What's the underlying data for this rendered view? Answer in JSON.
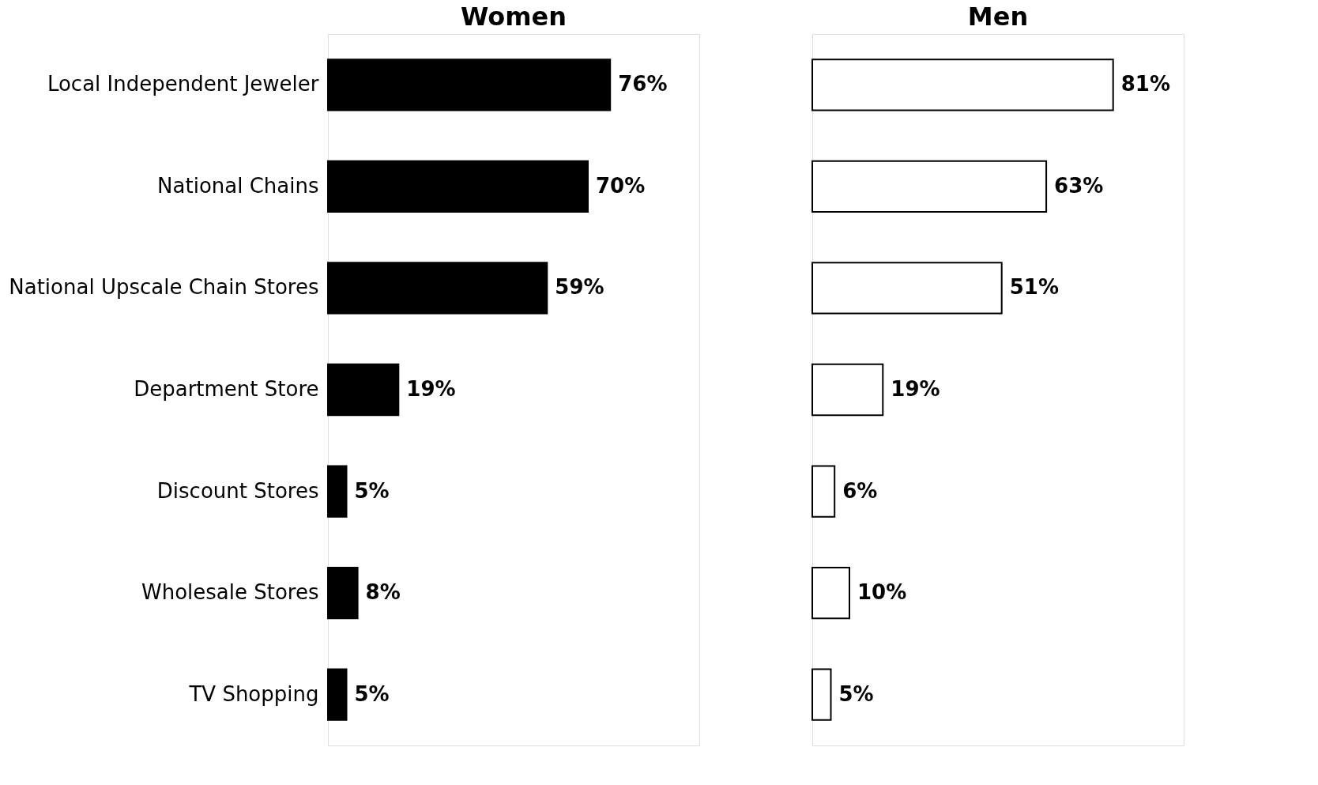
{
  "chart_data": [
    {
      "type": "bar",
      "orientation": "horizontal",
      "title": "Women",
      "categories": [
        "Local Independent Jeweler",
        "National Chains",
        "National Upscale Chain Stores",
        "Department Store",
        "Discount Stores",
        "Wholesale Stores",
        "TV Shopping"
      ],
      "series": [
        {
          "color": "#000000",
          "values": [
            76,
            70,
            59,
            19,
            5,
            8,
            5
          ],
          "value_labels": [
            "76%",
            "70%",
            "59%",
            "19%",
            "5%",
            "8%",
            "5%"
          ]
        }
      ],
      "xlim": [
        0,
        100
      ],
      "tick_labels": "y",
      "grid": false
    },
    {
      "type": "bar",
      "orientation": "horizontal",
      "title": "Men",
      "categories": [
        null,
        null,
        null,
        null,
        null,
        null,
        null
      ],
      "series": [
        {
          "color": "#ffffff",
          "values": [
            81,
            63,
            51,
            19,
            6,
            10,
            5
          ],
          "value_labels": [
            "81%",
            "63%",
            "51%",
            "19%",
            "6%",
            "10%",
            "5%"
          ]
        }
      ],
      "xlim": [
        0,
        100
      ],
      "tick_labels": false,
      "grid": false
    }
  ]
}
